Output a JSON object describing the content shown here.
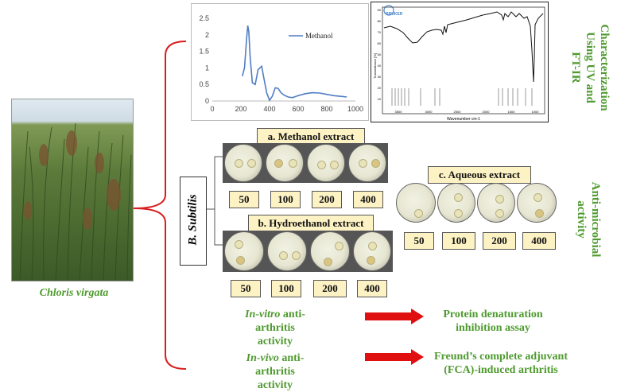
{
  "plant": {
    "name": "Chloris virgata"
  },
  "uv_chart": {
    "legend": "Methanol",
    "y_ticks": [
      "0",
      "0.5",
      "1",
      "1.5",
      "2",
      "2.5"
    ],
    "x_ticks": [
      "0",
      "200",
      "400",
      "600",
      "800",
      "1000"
    ]
  },
  "chart_data": [
    {
      "type": "line",
      "title": "",
      "xlabel": "",
      "ylabel": "",
      "xlim": [
        0,
        1000
      ],
      "ylim": [
        0,
        2.5
      ],
      "grid": false,
      "legend_position": "top-right",
      "series": [
        {
          "name": "Methanol",
          "x": [
            210,
            225,
            240,
            248,
            255,
            265,
            280,
            300,
            320,
            345,
            360,
            380,
            400,
            420,
            440,
            460,
            480,
            500,
            530,
            560,
            600,
            650,
            700,
            750,
            800,
            850,
            900,
            940
          ],
          "y": [
            0.75,
            1.0,
            1.9,
            2.28,
            2.1,
            1.3,
            0.55,
            0.5,
            0.95,
            1.05,
            0.7,
            0.25,
            0.02,
            0.15,
            0.4,
            0.38,
            0.25,
            0.18,
            0.12,
            0.1,
            0.16,
            0.22,
            0.25,
            0.24,
            0.2,
            0.16,
            0.14,
            0.12
          ]
        }
      ]
    }
  ],
  "ftir": {
    "brand": "BRUKER",
    "xlabel": "Wavenumber cm-1",
    "ylabel": "Transmittance [%]",
    "x_ticks": [
      "3500",
      "3000",
      "2500",
      "2000",
      "1500",
      "1000"
    ],
    "y_ticks": [
      "90",
      "80",
      "70",
      "60",
      "50",
      "40",
      "30",
      "20",
      "10"
    ]
  },
  "labels": {
    "characterization": [
      "Characterization",
      "Using UV and",
      "FT-IR"
    ],
    "antimicrobial": [
      "Anti-microbial",
      "activity"
    ],
    "organism": "B. Subtilis"
  },
  "extracts": {
    "methanol": {
      "title": "a. Methanol extract",
      "conc": [
        "50",
        "100",
        "200",
        "400"
      ]
    },
    "hydroethanol": {
      "title": "b. Hydroethanol extract",
      "conc": [
        "50",
        "100",
        "200",
        "400"
      ]
    },
    "aqueous": {
      "title": "c. Aqueous extract",
      "conc": [
        "50",
        "100",
        "200",
        "400"
      ]
    }
  },
  "assays": {
    "invitro": {
      "prefix": "In-vitro",
      "rest": " anti-arthritis",
      "line2": "activity",
      "result1": "Protein denaturation",
      "result2": "inhibition assay"
    },
    "invivo": {
      "prefix": "In-vivo",
      "rest": " anti-arthritis",
      "line2": "activity",
      "result1": "Freund’s complete adjuvant",
      "result2": "(FCA)-induced arthritis"
    }
  }
}
